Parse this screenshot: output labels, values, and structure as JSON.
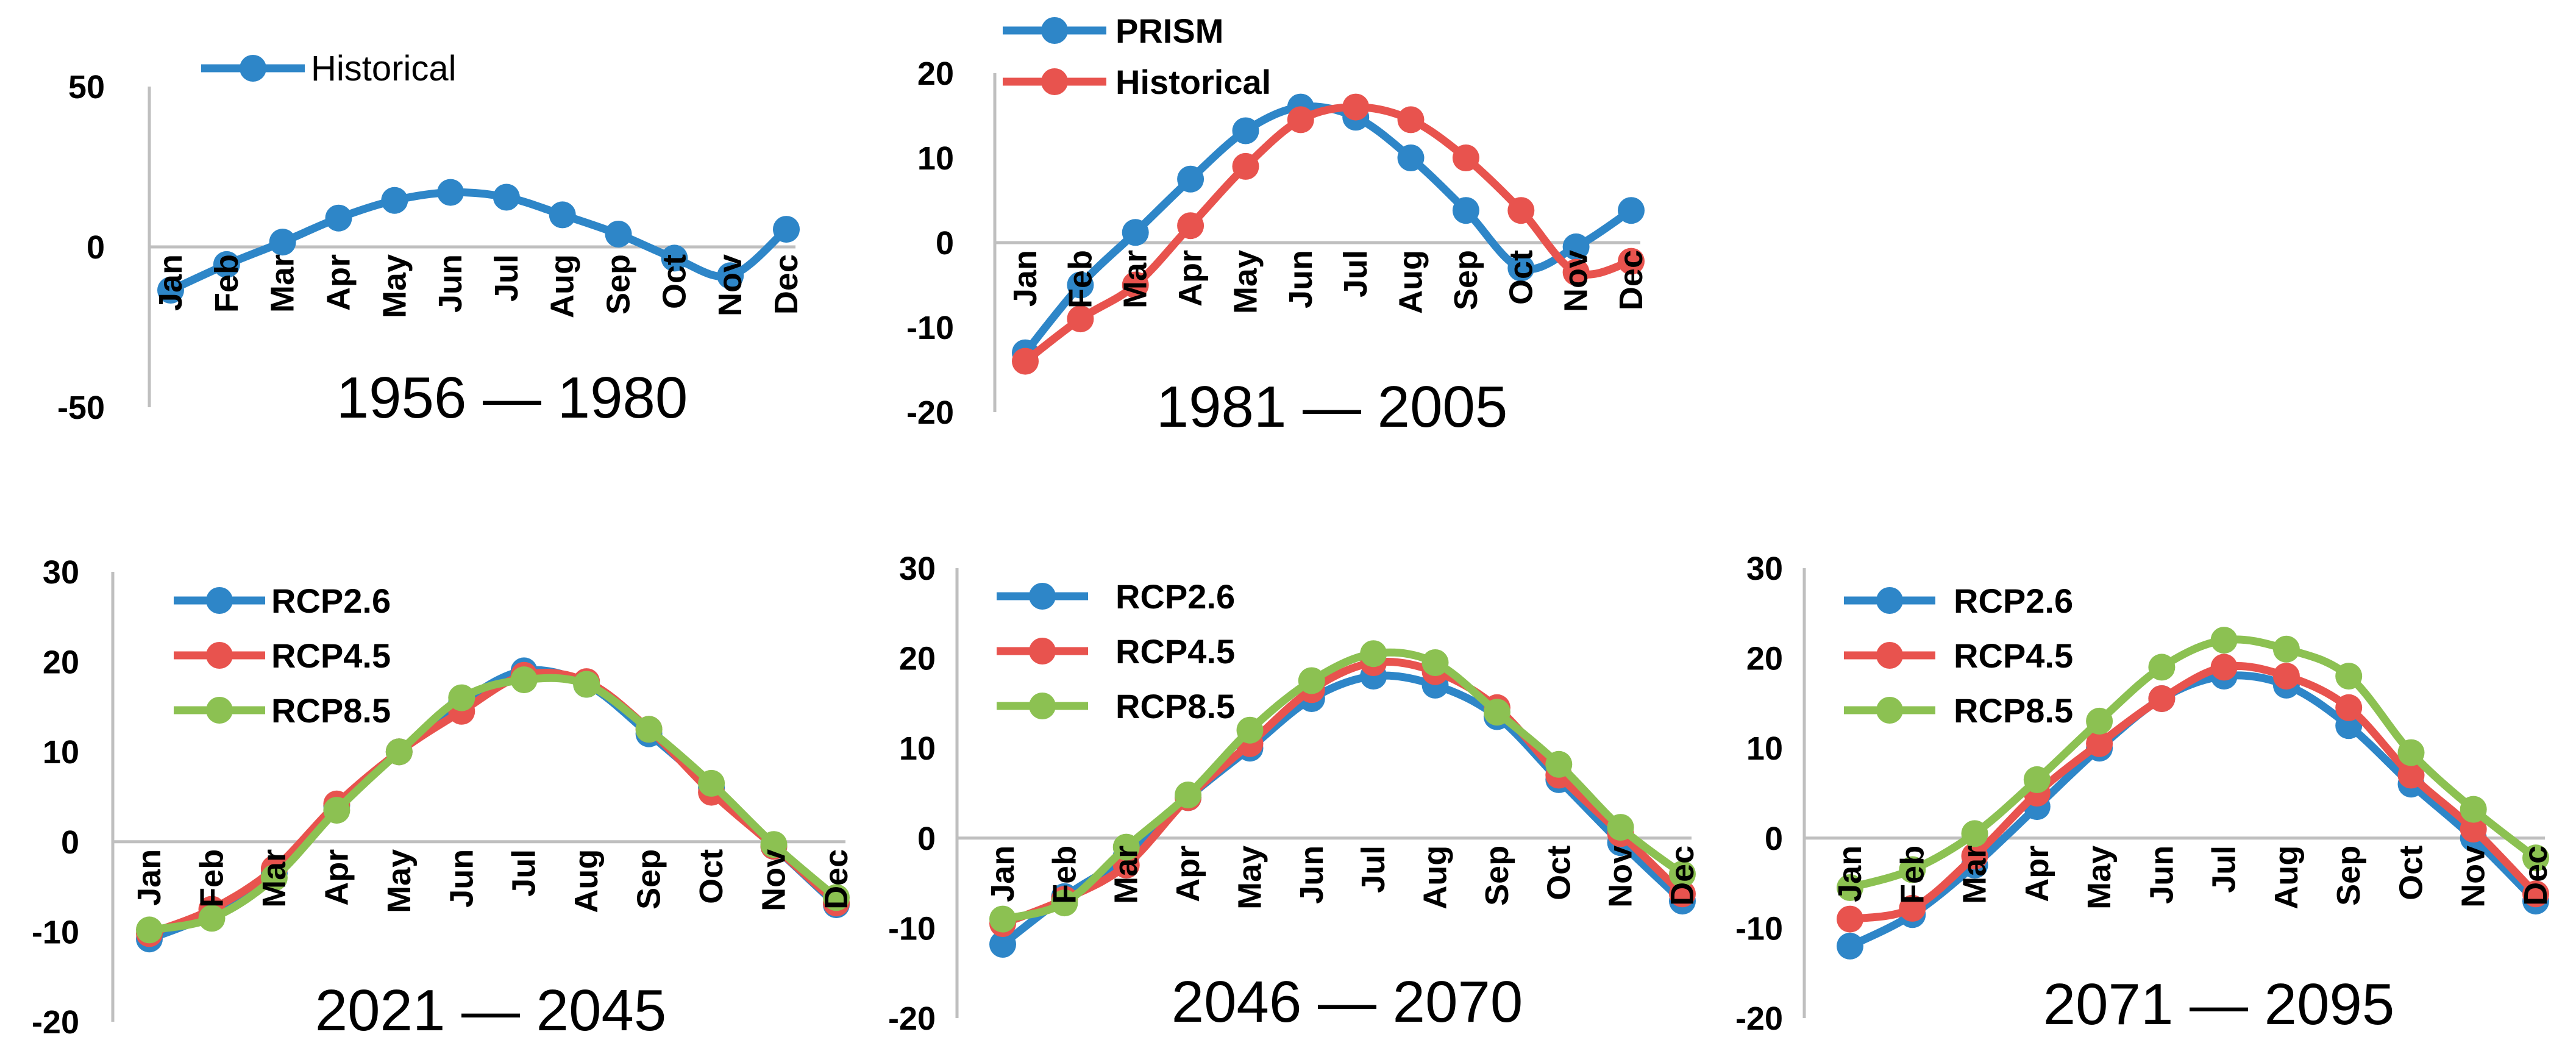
{
  "chart_data": [
    {
      "type": "line",
      "period_label": "1956 — 1980",
      "categories": [
        "Jan",
        "Feb",
        "Mar",
        "Apr",
        "May",
        "Jun",
        "Jul",
        "Aug",
        "Sep",
        "Oct",
        "Nov",
        "Dec"
      ],
      "ylim": [
        -50,
        50
      ],
      "yticks": [
        -50,
        0,
        50
      ],
      "legend_style": "plain",
      "series": [
        {
          "name": "Historical",
          "color": "#2e86c8",
          "values": [
            -13.5,
            -5.5,
            1.5,
            9,
            14.5,
            17,
            15.5,
            10,
            4,
            -3.5,
            -9,
            5.5
          ]
        }
      ]
    },
    {
      "type": "line",
      "period_label": "1981 — 2005",
      "categories": [
        "Jan",
        "Feb",
        "Mar",
        "Apr",
        "May",
        "Jun",
        "Jul",
        "Aug",
        "Sep",
        "Oct",
        "Nov",
        "Dec"
      ],
      "ylim": [
        -20,
        20
      ],
      "yticks": [
        -20,
        -10,
        0,
        10,
        20
      ],
      "legend_style": "bold",
      "series": [
        {
          "name": "PRISM",
          "color": "#2e86c8",
          "values": [
            -13,
            -5,
            1.2,
            7.5,
            13.2,
            16,
            14.8,
            10,
            3.8,
            -3,
            -0.5,
            3.8
          ]
        },
        {
          "name": "Historical",
          "color": "#e8534e",
          "values": [
            -14,
            -9,
            -5,
            2,
            9,
            14.5,
            16,
            14.5,
            10,
            3.8,
            -3.5,
            -2.2
          ]
        }
      ]
    },
    {
      "type": "line",
      "period_label": "2021 — 2045",
      "categories": [
        "Jan",
        "Feb",
        "Mar",
        "Apr",
        "May",
        "Jun",
        "Jul",
        "Aug",
        "Sep",
        "Oct",
        "Nov",
        "Dec"
      ],
      "ylim": [
        -20,
        30
      ],
      "yticks": [
        -20,
        -10,
        0,
        10,
        20,
        30
      ],
      "legend_style": "bold",
      "series": [
        {
          "name": "RCP2.6",
          "color": "#2e86c8",
          "values": [
            -10.8,
            -8,
            -3.5,
            4,
            10,
            15.5,
            19,
            17.5,
            12,
            6,
            -0.5,
            -7
          ]
        },
        {
          "name": "RCP4.5",
          "color": "#e8534e",
          "values": [
            -10.2,
            -7.5,
            -3,
            4.2,
            10,
            14.5,
            18.5,
            17.8,
            12.5,
            5.5,
            -0.5,
            -6.8
          ]
        },
        {
          "name": "RCP8.5",
          "color": "#8cc152",
          "values": [
            -9.8,
            -8.5,
            -4,
            3.5,
            10,
            16,
            18,
            17.5,
            12.5,
            6.5,
            -0.3,
            -6.2
          ]
        }
      ]
    },
    {
      "type": "line",
      "period_label": "2046 — 2070",
      "categories": [
        "Jan",
        "Feb",
        "Mar",
        "Apr",
        "May",
        "Jun",
        "Jul",
        "Aug",
        "Sep",
        "Oct",
        "Nov",
        "Dec"
      ],
      "ylim": [
        -20,
        30
      ],
      "yticks": [
        -20,
        -10,
        0,
        10,
        20,
        30
      ],
      "legend_style": "bold",
      "series": [
        {
          "name": "RCP2.6",
          "color": "#2e86c8",
          "values": [
            -11.8,
            -6.5,
            -2,
            4.5,
            10,
            15.5,
            18,
            17,
            13.5,
            6.5,
            -0.5,
            -7
          ]
        },
        {
          "name": "RCP4.5",
          "color": "#e8534e",
          "values": [
            -9.5,
            -6.8,
            -3,
            4.5,
            10.5,
            16.5,
            19.5,
            18.5,
            14.5,
            7,
            0.5,
            -6.2
          ]
        },
        {
          "name": "RCP8.5",
          "color": "#8cc152",
          "values": [
            -9,
            -7.2,
            -1,
            4.8,
            12,
            17.5,
            20.5,
            19.5,
            14,
            8.2,
            1.2,
            -4
          ]
        }
      ]
    },
    {
      "type": "line",
      "period_label": "2071 — 2095",
      "categories": [
        "Jan",
        "Feb",
        "Mar",
        "Apr",
        "May",
        "Jun",
        "Jul",
        "Aug",
        "Sep",
        "Oct",
        "Nov",
        "Dec"
      ],
      "ylim": [
        -20,
        30
      ],
      "yticks": [
        -20,
        -10,
        0,
        10,
        20,
        30
      ],
      "legend_style": "bold",
      "series": [
        {
          "name": "RCP2.6",
          "color": "#2e86c8",
          "values": [
            -12,
            -8.5,
            -3,
            3.5,
            10,
            15.5,
            18,
            17,
            12.5,
            6,
            0,
            -7
          ]
        },
        {
          "name": "RCP4.5",
          "color": "#e8534e",
          "values": [
            -9,
            -7.8,
            -2,
            5,
            10.5,
            15.5,
            19,
            18,
            14.5,
            7,
            1,
            -6.2
          ]
        },
        {
          "name": "RCP8.5",
          "color": "#8cc152",
          "values": [
            -5.5,
            -3.5,
            0.5,
            6.5,
            13,
            19,
            22,
            21,
            18,
            9.5,
            3.2,
            -2.2
          ]
        }
      ]
    }
  ]
}
